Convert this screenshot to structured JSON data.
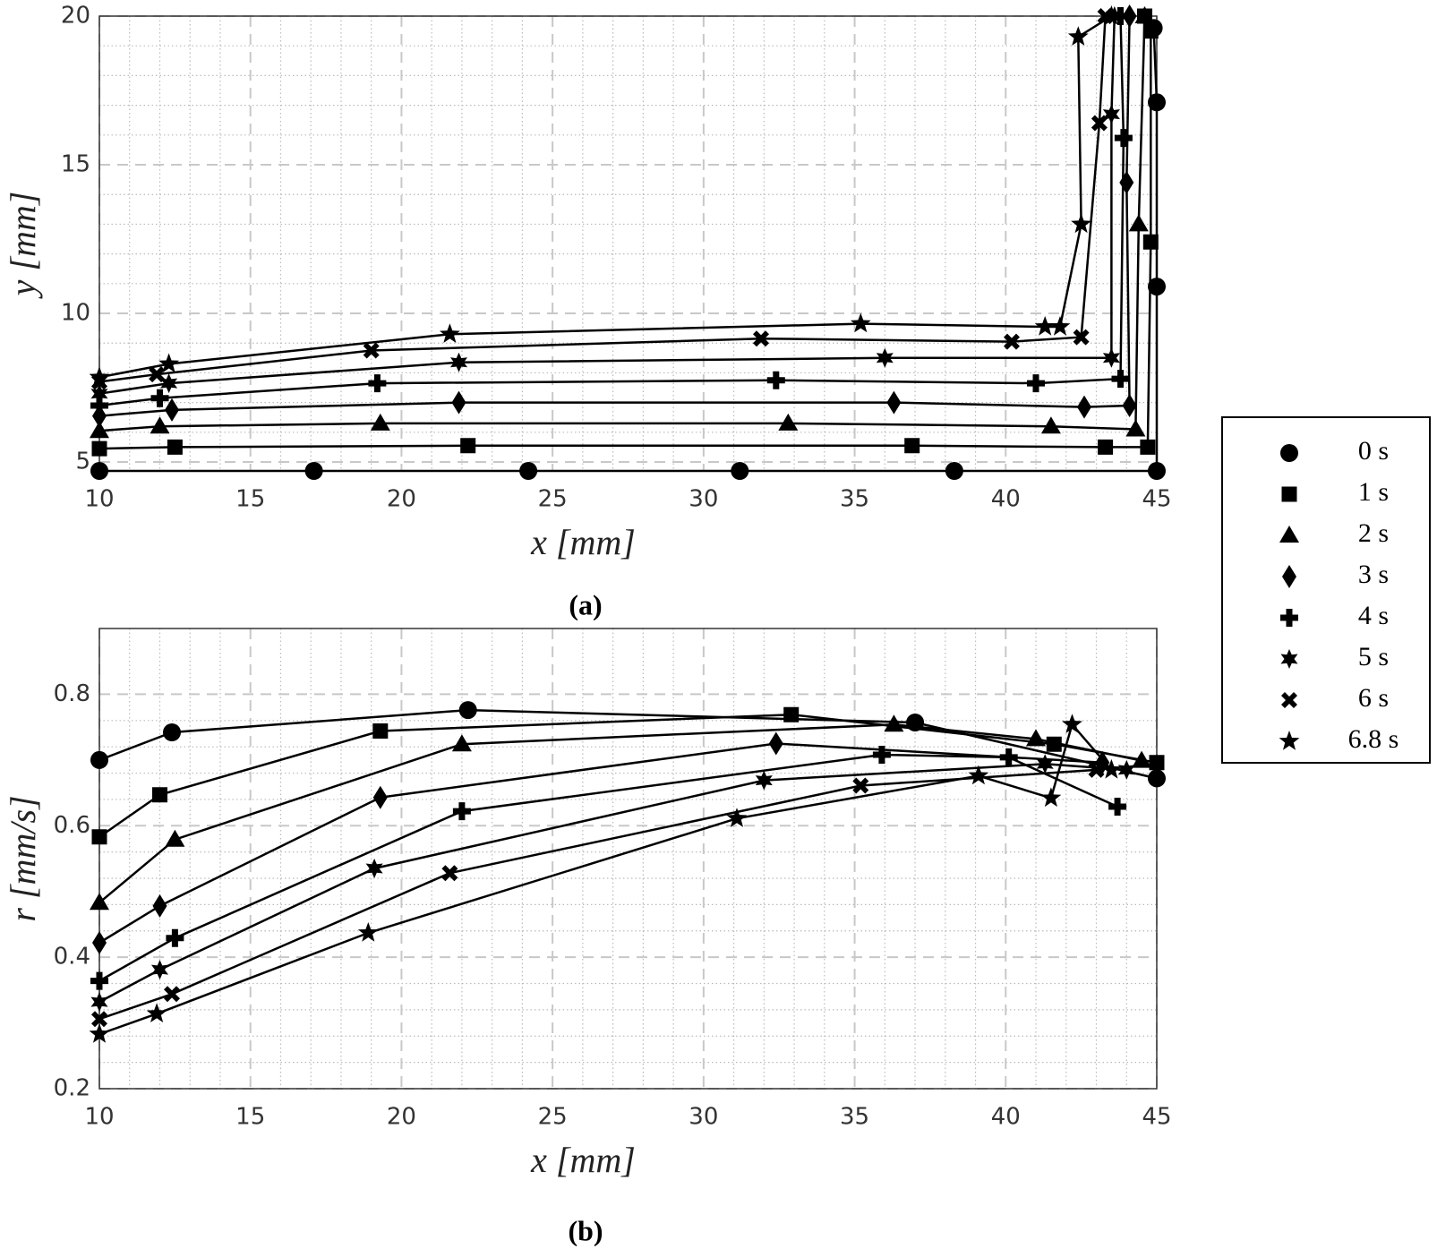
{
  "chart_data": [
    {
      "type": "line",
      "caption": "(a)",
      "x_label": "x [mm]",
      "y_label": "y [mm]",
      "color": "#000000",
      "grid": true,
      "minor_grid": true,
      "xlim": [
        10,
        45
      ],
      "xticks": [
        10,
        15,
        20,
        25,
        30,
        35,
        40,
        45
      ],
      "ylim": [
        4.7,
        20
      ],
      "yticks": [
        5,
        10,
        15,
        20
      ],
      "series": [
        {
          "name": "0 s",
          "marker": "circle",
          "x": [
            10,
            17.1,
            24.2,
            31.2,
            38.3,
            45,
            45,
            45,
            44.9
          ],
          "values": [
            4.7,
            4.7,
            4.7,
            4.7,
            4.7,
            4.7,
            10.9,
            17.1,
            19.6
          ]
        },
        {
          "name": "1 s",
          "marker": "square",
          "x": [
            10,
            12.5,
            22.2,
            36.9,
            43.3,
            44.7,
            44.8,
            44.8,
            44.6
          ],
          "values": [
            5.45,
            5.5,
            5.55,
            5.55,
            5.5,
            5.5,
            12.4,
            19.5,
            20
          ]
        },
        {
          "name": "2 s",
          "marker": "triangle",
          "x": [
            10,
            12,
            19.3,
            32.8,
            41.5,
            44.3,
            44.4,
            44.6
          ],
          "values": [
            6.05,
            6.2,
            6.3,
            6.3,
            6.2,
            6.1,
            13,
            20
          ]
        },
        {
          "name": "3 s",
          "marker": "diamond",
          "x": [
            10,
            12.4,
            21.9,
            36.3,
            42.6,
            44.1,
            44,
            44.1
          ],
          "values": [
            6.55,
            6.75,
            7,
            7,
            6.85,
            6.9,
            14.4,
            20
          ]
        },
        {
          "name": "4 s",
          "marker": "plus",
          "x": [
            10,
            12,
            19.2,
            32.4,
            41,
            43.8,
            43.9,
            43.8
          ],
          "values": [
            6.9,
            7.15,
            7.65,
            7.75,
            7.65,
            7.8,
            15.9,
            20
          ]
        },
        {
          "name": "5 s",
          "marker": "hexagram",
          "x": [
            10,
            12.3,
            21.9,
            36,
            43.5,
            43.5,
            43.6
          ],
          "values": [
            7.3,
            7.65,
            8.35,
            8.5,
            8.5,
            16.7,
            20
          ]
        },
        {
          "name": "6 s",
          "marker": "x",
          "x": [
            10,
            11.9,
            19,
            31.9,
            40.2,
            42.5,
            43.1,
            43.3
          ],
          "values": [
            7.7,
            7.95,
            8.75,
            9.15,
            9.05,
            9.2,
            16.4,
            20
          ]
        },
        {
          "name": "6.8 s",
          "marker": "pentagram",
          "x": [
            10,
            12.3,
            21.6,
            35.2,
            41.3,
            41.8,
            42.5,
            42.4,
            43.5
          ],
          "values": [
            7.85,
            8.3,
            9.3,
            9.65,
            9.55,
            9.55,
            13,
            19.3,
            20
          ]
        }
      ]
    },
    {
      "type": "line",
      "caption": "(b)",
      "x_label": "x [mm]",
      "y_label": "r [mm/s]",
      "color": "#000000",
      "grid": true,
      "minor_grid": true,
      "xlim": [
        10,
        45
      ],
      "xticks": [
        10,
        15,
        20,
        25,
        30,
        35,
        40,
        45
      ],
      "ylim": [
        0.2,
        0.9
      ],
      "yticks": [
        0.2,
        0.4,
        0.6,
        0.8
      ],
      "series": [
        {
          "marker": "circle",
          "x": [
            10,
            12.4,
            22.2,
            37,
            45
          ],
          "values": [
            0.7,
            0.742,
            0.776,
            0.757,
            0.672
          ]
        },
        {
          "marker": "square",
          "x": [
            10,
            12,
            19.3,
            32.9,
            41.6,
            45
          ],
          "values": [
            0.583,
            0.647,
            0.744,
            0.769,
            0.724,
            0.696
          ]
        },
        {
          "marker": "triangle",
          "x": [
            10,
            12.5,
            22,
            36.3,
            41,
            44.5
          ],
          "values": [
            0.483,
            0.579,
            0.724,
            0.754,
            0.732,
            0.699
          ]
        },
        {
          "marker": "diamond",
          "x": [
            10,
            12,
            19.3,
            32.4,
            43.2
          ],
          "values": [
            0.422,
            0.478,
            0.643,
            0.725,
            0.696
          ]
        },
        {
          "marker": "plus",
          "x": [
            10,
            12.5,
            22,
            35.9,
            40.1,
            43.7
          ],
          "values": [
            0.364,
            0.429,
            0.622,
            0.708,
            0.704,
            0.629
          ]
        },
        {
          "marker": "hexagram",
          "x": [
            10,
            12,
            19.1,
            32,
            41.3,
            44
          ],
          "values": [
            0.332,
            0.381,
            0.535,
            0.669,
            0.694,
            0.685
          ]
        },
        {
          "marker": "x",
          "x": [
            10,
            12.4,
            21.6,
            35.2,
            43
          ],
          "values": [
            0.306,
            0.344,
            0.528,
            0.661,
            0.685
          ]
        },
        {
          "marker": "pentagram",
          "x": [
            10,
            11.9,
            18.9,
            31.1,
            39.1,
            41.5,
            42.2,
            43.5
          ],
          "values": [
            0.283,
            0.314,
            0.437,
            0.611,
            0.676,
            0.642,
            0.754,
            0.685
          ]
        }
      ]
    }
  ]
}
